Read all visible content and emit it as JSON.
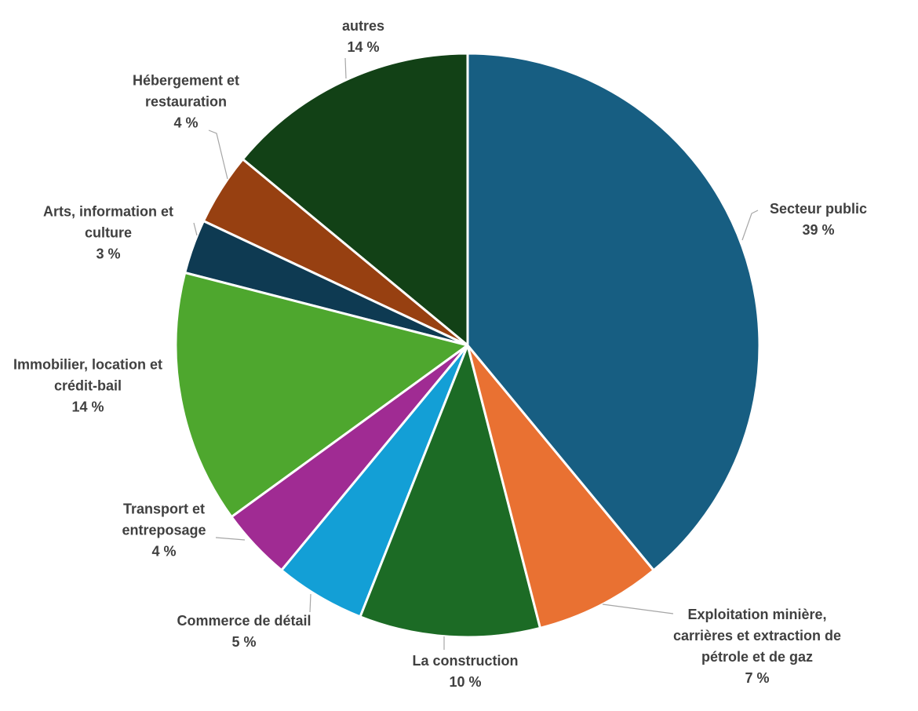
{
  "chart_data": {
    "type": "pie",
    "categories": [
      "Secteur public",
      "Exploitation minière, carrières et extraction de pétrole et de gaz",
      "La construction",
      "Commerce de détail",
      "Transport et entreposage",
      "Immobilier, location et crédit-bail",
      "Arts, information et culture",
      "Hébergement et restauration",
      "autres"
    ],
    "values": [
      39,
      7,
      10,
      5,
      4,
      14,
      3,
      4,
      14
    ],
    "value_labels": [
      "39 %",
      "7 %",
      "10 %",
      "5 %",
      "4 %",
      "14 %",
      "3 %",
      "4 %",
      "14 %"
    ],
    "colors": [
      "#175e82",
      "#e97132",
      "#1c6b25",
      "#139fd6",
      "#a02b93",
      "#4ea72e",
      "#0e3a52",
      "#974011",
      "#124116"
    ]
  }
}
